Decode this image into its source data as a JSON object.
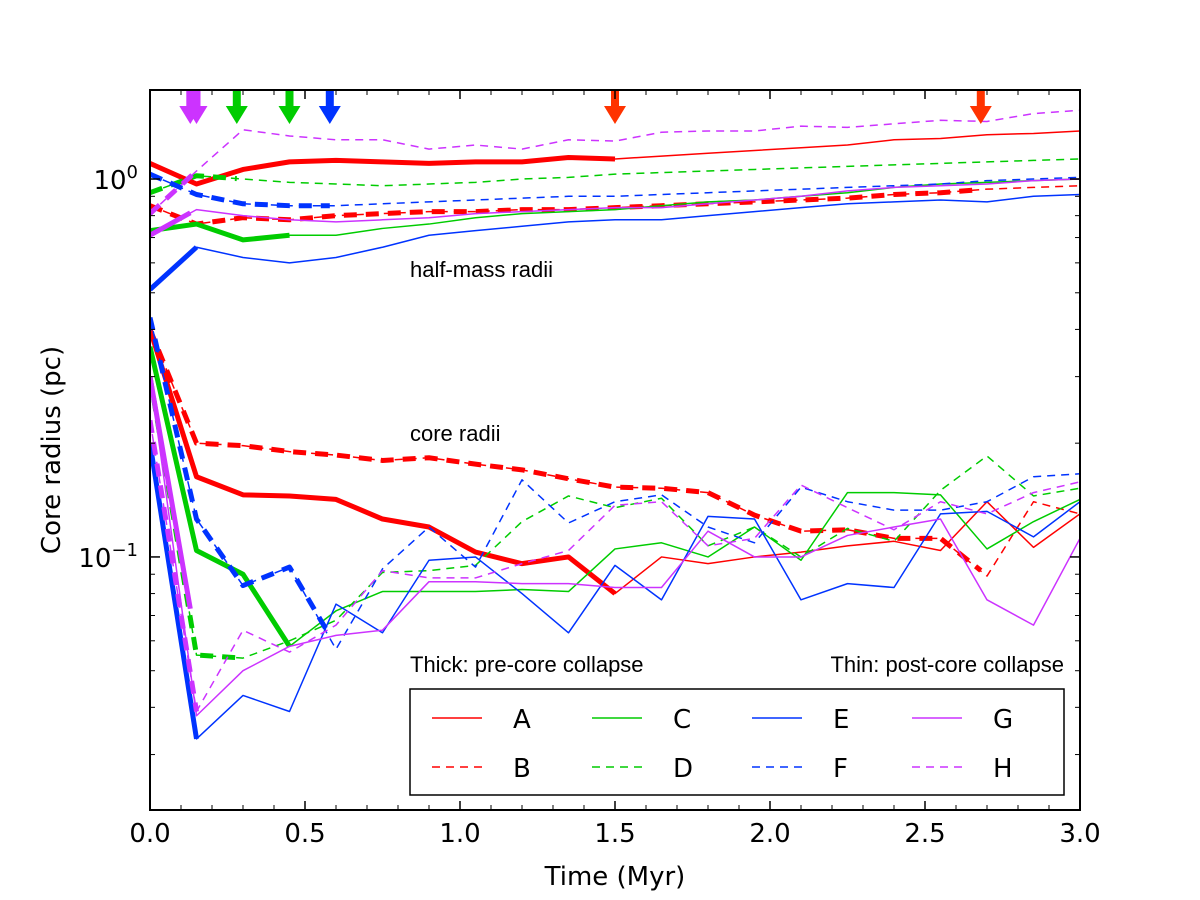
{
  "chart_data": {
    "type": "line",
    "title": "",
    "xlabel": "Time (Myr)",
    "ylabel": "Core radius (pc)",
    "xlim": [
      0.0,
      3.0
    ],
    "ylim": [
      0.0214,
      1.72
    ],
    "yscale": "log",
    "grid": false,
    "x_ticks": [
      "0.0",
      "0.5",
      "1.0",
      "1.5",
      "2.0",
      "2.5",
      "3.0"
    ],
    "y_tick_labels": [
      {
        "value": 1.0,
        "base": "10",
        "exp": "0"
      },
      {
        "value": 0.1,
        "base": "10",
        "exp": "−1"
      }
    ],
    "annotations": {
      "half_mass": "half-mass radii",
      "core": "core radii",
      "thick_note": "Thick: pre-core collapse",
      "thin_note": "Thin: post-core collapse"
    },
    "legend_position": "lower-right",
    "legend": [
      {
        "label": "A",
        "color": "#ff0000",
        "dash": "solid"
      },
      {
        "label": "C",
        "color": "#00cc00",
        "dash": "solid"
      },
      {
        "label": "E",
        "color": "#0033ff",
        "dash": "solid"
      },
      {
        "label": "G",
        "color": "#cc33ff",
        "dash": "solid"
      },
      {
        "label": "B",
        "color": "#ff0000",
        "dash": "dashed"
      },
      {
        "label": "D",
        "color": "#00cc00",
        "dash": "dashed"
      },
      {
        "label": "F",
        "color": "#0033ff",
        "dash": "dashed"
      },
      {
        "label": "H",
        "color": "#cc33ff",
        "dash": "dashed"
      }
    ],
    "collapse_markers": [
      {
        "x": 0.13,
        "color": "#cc33ff"
      },
      {
        "x": 0.15,
        "color": "#cc33ff"
      },
      {
        "x": 0.28,
        "color": "#00cc00"
      },
      {
        "x": 0.45,
        "color": "#00cc00"
      },
      {
        "x": 0.58,
        "color": "#0033ff"
      },
      {
        "x": 1.5,
        "color": "#ff3300"
      },
      {
        "x": 2.68,
        "color": "#ff3300"
      }
    ],
    "series": [
      {
        "name": "A",
        "kind": "half-mass",
        "color": "#ff0000",
        "dash": "solid",
        "collapse_x": 1.5,
        "x": [
          0.0,
          0.15,
          0.3,
          0.45,
          0.6,
          0.75,
          0.9,
          1.05,
          1.2,
          1.35,
          1.5,
          1.65,
          1.8,
          1.95,
          2.1,
          2.25,
          2.4,
          2.55,
          2.7,
          2.85,
          3.0
        ],
        "y": [
          1.1,
          0.97,
          1.06,
          1.11,
          1.12,
          1.11,
          1.1,
          1.11,
          1.11,
          1.14,
          1.13,
          1.15,
          1.17,
          1.19,
          1.21,
          1.23,
          1.27,
          1.28,
          1.31,
          1.32,
          1.34
        ]
      },
      {
        "name": "B",
        "kind": "half-mass",
        "color": "#ff0000",
        "dash": "dashed",
        "collapse_x": 2.68,
        "x": [
          0.0,
          0.15,
          0.3,
          0.45,
          0.6,
          0.75,
          0.9,
          1.05,
          1.2,
          1.35,
          1.5,
          1.65,
          1.8,
          1.95,
          2.1,
          2.25,
          2.4,
          2.55,
          2.7,
          2.85,
          3.0
        ],
        "y": [
          0.85,
          0.76,
          0.79,
          0.78,
          0.8,
          0.81,
          0.82,
          0.82,
          0.83,
          0.83,
          0.84,
          0.85,
          0.86,
          0.87,
          0.88,
          0.89,
          0.91,
          0.92,
          0.94,
          0.95,
          0.96
        ]
      },
      {
        "name": "C",
        "kind": "half-mass",
        "color": "#00cc00",
        "dash": "solid",
        "collapse_x": 0.45,
        "x": [
          0.0,
          0.15,
          0.3,
          0.45,
          0.6,
          0.75,
          0.9,
          1.05,
          1.2,
          1.35,
          1.5,
          1.65,
          1.8,
          1.95,
          2.1,
          2.25,
          2.4,
          2.55,
          2.7,
          2.85,
          3.0
        ],
        "y": [
          0.73,
          0.76,
          0.69,
          0.71,
          0.71,
          0.74,
          0.76,
          0.79,
          0.81,
          0.82,
          0.83,
          0.85,
          0.87,
          0.88,
          0.9,
          0.92,
          0.95,
          0.97,
          0.98,
          0.99,
          1.0
        ]
      },
      {
        "name": "D",
        "kind": "half-mass",
        "color": "#00cc00",
        "dash": "dashed",
        "collapse_x": 0.28,
        "x": [
          0.0,
          0.15,
          0.3,
          0.45,
          0.6,
          0.75,
          0.9,
          1.05,
          1.2,
          1.35,
          1.5,
          1.65,
          1.8,
          1.95,
          2.1,
          2.25,
          2.4,
          2.55,
          2.7,
          2.85,
          3.0
        ],
        "y": [
          0.92,
          1.02,
          1.0,
          0.98,
          0.97,
          0.96,
          0.97,
          0.98,
          1.0,
          1.01,
          1.03,
          1.04,
          1.05,
          1.06,
          1.07,
          1.08,
          1.09,
          1.1,
          1.11,
          1.12,
          1.13
        ]
      },
      {
        "name": "E",
        "kind": "half-mass",
        "color": "#0033ff",
        "dash": "solid",
        "collapse_x": 0.15,
        "x": [
          0.0,
          0.15,
          0.3,
          0.45,
          0.6,
          0.75,
          0.9,
          1.05,
          1.2,
          1.35,
          1.5,
          1.65,
          1.8,
          1.95,
          2.1,
          2.25,
          2.4,
          2.55,
          2.7,
          2.85,
          3.0
        ],
        "y": [
          0.51,
          0.66,
          0.62,
          0.6,
          0.62,
          0.66,
          0.71,
          0.73,
          0.75,
          0.77,
          0.78,
          0.78,
          0.8,
          0.82,
          0.84,
          0.86,
          0.87,
          0.88,
          0.87,
          0.9,
          0.91
        ]
      },
      {
        "name": "F",
        "kind": "half-mass",
        "color": "#0033ff",
        "dash": "dashed",
        "collapse_x": 0.58,
        "x": [
          0.0,
          0.15,
          0.3,
          0.45,
          0.6,
          0.75,
          0.9,
          1.05,
          1.2,
          1.35,
          1.5,
          1.65,
          1.8,
          1.95,
          2.1,
          2.25,
          2.4,
          2.55,
          2.7,
          2.85,
          3.0
        ],
        "y": [
          1.03,
          0.91,
          0.86,
          0.85,
          0.85,
          0.86,
          0.87,
          0.88,
          0.89,
          0.9,
          0.9,
          0.91,
          0.92,
          0.93,
          0.94,
          0.95,
          0.96,
          0.97,
          0.99,
          1.0,
          1.01
        ]
      },
      {
        "name": "G",
        "kind": "half-mass",
        "color": "#cc33ff",
        "dash": "solid",
        "collapse_x": 0.13,
        "x": [
          0.0,
          0.15,
          0.3,
          0.45,
          0.6,
          0.75,
          0.9,
          1.05,
          1.2,
          1.35,
          1.5,
          1.65,
          1.8,
          1.95,
          2.1,
          2.25,
          2.4,
          2.55,
          2.7,
          2.85,
          3.0
        ],
        "y": [
          0.71,
          0.83,
          0.8,
          0.78,
          0.77,
          0.78,
          0.79,
          0.81,
          0.82,
          0.83,
          0.84,
          0.84,
          0.86,
          0.88,
          0.9,
          0.93,
          0.95,
          0.96,
          0.97,
          0.99,
          1.0
        ]
      },
      {
        "name": "H",
        "kind": "half-mass",
        "color": "#cc33ff",
        "dash": "dashed",
        "collapse_x": 0.15,
        "x": [
          0.0,
          0.15,
          0.3,
          0.45,
          0.6,
          0.75,
          0.9,
          1.05,
          1.2,
          1.35,
          1.5,
          1.65,
          1.8,
          1.95,
          2.1,
          2.25,
          2.4,
          2.55,
          2.7,
          2.85,
          3.0
        ],
        "y": [
          0.81,
          1.05,
          1.35,
          1.3,
          1.27,
          1.27,
          1.2,
          1.23,
          1.2,
          1.27,
          1.26,
          1.33,
          1.34,
          1.34,
          1.38,
          1.37,
          1.4,
          1.43,
          1.42,
          1.49,
          1.52
        ]
      },
      {
        "name": "A",
        "kind": "core",
        "color": "#ff0000",
        "dash": "solid",
        "collapse_x": 1.5,
        "x": [
          0.0,
          0.15,
          0.3,
          0.45,
          0.6,
          0.75,
          0.9,
          1.05,
          1.2,
          1.35,
          1.5,
          1.65,
          1.8,
          1.95,
          2.1,
          2.25,
          2.4,
          2.55,
          2.7,
          2.85,
          3.0
        ],
        "y": [
          0.4,
          0.163,
          0.146,
          0.145,
          0.142,
          0.126,
          0.12,
          0.103,
          0.096,
          0.1,
          0.08,
          0.1,
          0.096,
          0.1,
          0.103,
          0.107,
          0.11,
          0.104,
          0.14,
          0.106,
          0.13
        ]
      },
      {
        "name": "B",
        "kind": "core",
        "color": "#ff0000",
        "dash": "dashed",
        "collapse_x": 2.68,
        "x": [
          0.0,
          0.15,
          0.3,
          0.45,
          0.6,
          0.75,
          0.9,
          1.05,
          1.2,
          1.35,
          1.5,
          1.65,
          1.8,
          1.95,
          2.1,
          2.25,
          2.4,
          2.55,
          2.7,
          2.85,
          3.0
        ],
        "y": [
          0.4,
          0.2,
          0.197,
          0.19,
          0.186,
          0.18,
          0.183,
          0.176,
          0.17,
          0.161,
          0.153,
          0.152,
          0.148,
          0.129,
          0.117,
          0.118,
          0.112,
          0.112,
          0.089,
          0.14,
          0.13
        ]
      },
      {
        "name": "C",
        "kind": "core",
        "color": "#00cc00",
        "dash": "solid",
        "collapse_x": 0.45,
        "x": [
          0.0,
          0.15,
          0.3,
          0.45,
          0.6,
          0.75,
          0.9,
          1.05,
          1.2,
          1.35,
          1.5,
          1.65,
          1.8,
          1.95,
          2.1,
          2.25,
          2.4,
          2.55,
          2.7,
          2.85,
          3.0
        ],
        "y": [
          0.36,
          0.104,
          0.09,
          0.058,
          0.072,
          0.081,
          0.081,
          0.081,
          0.082,
          0.081,
          0.105,
          0.109,
          0.1,
          0.12,
          0.098,
          0.148,
          0.148,
          0.146,
          0.105,
          0.124,
          0.142
        ]
      },
      {
        "name": "D",
        "kind": "core",
        "color": "#00cc00",
        "dash": "dashed",
        "collapse_x": 0.28,
        "x": [
          0.0,
          0.15,
          0.3,
          0.45,
          0.6,
          0.75,
          0.9,
          1.05,
          1.2,
          1.35,
          1.5,
          1.65,
          1.8,
          1.95,
          2.1,
          2.25,
          2.4,
          2.55,
          2.7,
          2.85,
          3.0
        ],
        "y": [
          0.3,
          0.055,
          0.054,
          0.06,
          0.068,
          0.091,
          0.092,
          0.095,
          0.124,
          0.145,
          0.135,
          0.143,
          0.107,
          0.12,
          0.1,
          0.119,
          0.11,
          0.15,
          0.185,
          0.145,
          0.152
        ]
      },
      {
        "name": "E",
        "kind": "core",
        "color": "#0033ff",
        "dash": "solid",
        "collapse_x": 0.15,
        "x": [
          0.0,
          0.15,
          0.3,
          0.45,
          0.6,
          0.75,
          0.9,
          1.05,
          1.2,
          1.35,
          1.5,
          1.65,
          1.8,
          1.95,
          2.1,
          2.25,
          2.4,
          2.55,
          2.7,
          2.85,
          3.0
        ],
        "y": [
          0.2,
          0.033,
          0.043,
          0.039,
          0.075,
          0.063,
          0.098,
          0.1,
          0.08,
          0.063,
          0.095,
          0.077,
          0.128,
          0.126,
          0.077,
          0.085,
          0.083,
          0.13,
          0.132,
          0.113,
          0.14
        ]
      },
      {
        "name": "F",
        "kind": "core",
        "color": "#0033ff",
        "dash": "dashed",
        "collapse_x": 0.58,
        "x": [
          0.0,
          0.15,
          0.3,
          0.45,
          0.6,
          0.75,
          0.9,
          1.05,
          1.2,
          1.35,
          1.5,
          1.65,
          1.8,
          1.95,
          2.1,
          2.25,
          2.4,
          2.55,
          2.7,
          2.85,
          3.0
        ],
        "y": [
          0.43,
          0.126,
          0.084,
          0.094,
          0.057,
          0.093,
          0.12,
          0.094,
          0.16,
          0.123,
          0.14,
          0.146,
          0.12,
          0.109,
          0.153,
          0.14,
          0.133,
          0.133,
          0.14,
          0.163,
          0.166
        ]
      },
      {
        "name": "G",
        "kind": "core",
        "color": "#cc33ff",
        "dash": "solid",
        "collapse_x": 0.13,
        "x": [
          0.0,
          0.15,
          0.3,
          0.45,
          0.6,
          0.75,
          0.9,
          1.05,
          1.2,
          1.35,
          1.5,
          1.65,
          1.8,
          1.95,
          2.1,
          2.25,
          2.4,
          2.55,
          2.7,
          2.85,
          3.0
        ],
        "y": [
          0.3,
          0.038,
          0.05,
          0.058,
          0.062,
          0.064,
          0.086,
          0.086,
          0.085,
          0.085,
          0.083,
          0.083,
          0.117,
          0.1,
          0.1,
          0.114,
          0.12,
          0.126,
          0.077,
          0.066,
          0.112
        ]
      },
      {
        "name": "H",
        "kind": "core",
        "color": "#cc33ff",
        "dash": "dashed",
        "collapse_x": 0.15,
        "x": [
          0.0,
          0.15,
          0.3,
          0.45,
          0.6,
          0.75,
          0.9,
          1.05,
          1.2,
          1.35,
          1.5,
          1.65,
          1.8,
          1.95,
          2.1,
          2.25,
          2.4,
          2.55,
          2.7,
          2.85,
          3.0
        ],
        "y": [
          0.23,
          0.039,
          0.064,
          0.056,
          0.066,
          0.092,
          0.088,
          0.088,
          0.096,
          0.104,
          0.137,
          0.14,
          0.107,
          0.112,
          0.155,
          0.135,
          0.118,
          0.14,
          0.13,
          0.148,
          0.158
        ]
      }
    ]
  }
}
